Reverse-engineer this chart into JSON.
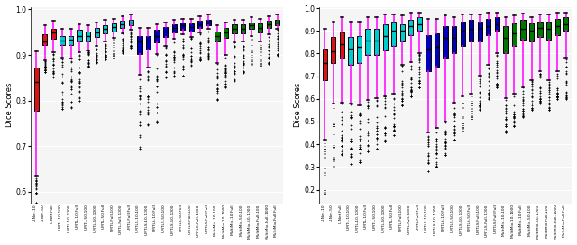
{
  "labels": [
    "U-Net-10",
    "U-Net-50",
    "U-Net-Full",
    "UMTL-10-100",
    "UMTL-10-1000",
    "UMTL-10-Full",
    "UMTL-50-100",
    "UMTL-50-1000",
    "UMTL-50-Full",
    "UMTL-Full-100",
    "UMTL-Full-1000",
    "UMTL-Full-Full",
    "UMTLS-10-100",
    "UMTLS-10-1000",
    "UMTLS-10-Full",
    "UMTLS-50-100",
    "UMTLS-50-1000",
    "UMTLS-50-Full",
    "UMTLS-Full-100",
    "UMTLS-Full-1000",
    "UMTLS-Full-Full",
    "MultiMix-10-100",
    "MultiMix-10-1000",
    "MultiMix-10-Full",
    "MultiMix-50-100",
    "MultiMix-50-1000",
    "MultiMix-Full-100",
    "MultiMix-Full-1000",
    "MultiMix-Full-Full"
  ],
  "colors_box": [
    "red",
    "red",
    "red",
    "cyan",
    "cyan",
    "cyan",
    "cyan",
    "cyan",
    "cyan",
    "cyan",
    "cyan",
    "cyan",
    "blue",
    "blue",
    "blue",
    "blue",
    "blue",
    "blue",
    "blue",
    "blue",
    "blue",
    "green",
    "green",
    "green",
    "green",
    "green",
    "green",
    "green",
    "green"
  ],
  "left_stats": [
    {
      "med": 0.84,
      "q1": 0.778,
      "q3": 0.872,
      "whislo": 0.635,
      "whishi": 0.908,
      "fliers_lo": [
        0.598,
        0.543,
        0.625,
        0.568
      ],
      "fliers_hi": []
    },
    {
      "med": 0.93,
      "q1": 0.921,
      "q3": 0.945,
      "whislo": 0.888,
      "whishi": 0.965,
      "fliers_lo": [
        0.875,
        0.868,
        0.863
      ],
      "fliers_hi": []
    },
    {
      "med": 0.95,
      "q1": 0.935,
      "q3": 0.958,
      "whislo": 0.906,
      "whishi": 0.975,
      "fliers_lo": [
        0.86,
        0.851
      ],
      "fliers_hi": []
    },
    {
      "med": 0.932,
      "q1": 0.921,
      "q3": 0.942,
      "whislo": 0.895,
      "whishi": 0.958,
      "fliers_lo": [
        0.84,
        0.796,
        0.78
      ],
      "fliers_hi": []
    },
    {
      "med": 0.933,
      "q1": 0.921,
      "q3": 0.942,
      "whislo": 0.893,
      "whishi": 0.958,
      "fliers_lo": [
        0.843,
        0.798,
        0.785
      ],
      "fliers_hi": []
    },
    {
      "med": 0.942,
      "q1": 0.93,
      "q3": 0.955,
      "whislo": 0.905,
      "whishi": 0.968,
      "fliers_lo": [
        0.862,
        0.841,
        0.8
      ],
      "fliers_hi": []
    },
    {
      "med": 0.942,
      "q1": 0.93,
      "q3": 0.952,
      "whislo": 0.91,
      "whishi": 0.965,
      "fliers_lo": [
        0.882,
        0.875
      ],
      "fliers_hi": []
    },
    {
      "med": 0.95,
      "q1": 0.94,
      "q3": 0.96,
      "whislo": 0.92,
      "whishi": 0.972,
      "fliers_lo": [
        0.891,
        0.883
      ],
      "fliers_hi": []
    },
    {
      "med": 0.958,
      "q1": 0.948,
      "q3": 0.966,
      "whislo": 0.93,
      "whishi": 0.978,
      "fliers_lo": [
        0.898,
        0.89
      ],
      "fliers_hi": []
    },
    {
      "med": 0.962,
      "q1": 0.952,
      "q3": 0.97,
      "whislo": 0.938,
      "whishi": 0.98,
      "fliers_lo": [
        0.9,
        0.893
      ],
      "fliers_hi": []
    },
    {
      "med": 0.968,
      "q1": 0.96,
      "q3": 0.975,
      "whislo": 0.948,
      "whishi": 0.984,
      "fliers_lo": [
        0.91,
        0.905
      ],
      "fliers_hi": []
    },
    {
      "med": 0.972,
      "q1": 0.965,
      "q3": 0.978,
      "whislo": 0.955,
      "whishi": 0.988,
      "fliers_lo": [
        0.92,
        0.915
      ],
      "fliers_hi": []
    },
    {
      "med": 0.93,
      "q1": 0.903,
      "q3": 0.942,
      "whislo": 0.856,
      "whishi": 0.96,
      "fliers_lo": [
        0.694,
        0.753,
        0.81
      ],
      "fliers_hi": []
    },
    {
      "med": 0.932,
      "q1": 0.912,
      "q3": 0.942,
      "whislo": 0.873,
      "whishi": 0.96,
      "fliers_lo": [
        0.748,
        0.81
      ],
      "fliers_hi": []
    },
    {
      "med": 0.942,
      "q1": 0.928,
      "q3": 0.955,
      "whislo": 0.902,
      "whishi": 0.968,
      "fliers_lo": [
        0.753,
        0.845
      ],
      "fliers_hi": []
    },
    {
      "med": 0.952,
      "q1": 0.94,
      "q3": 0.962,
      "whislo": 0.92,
      "whishi": 0.972,
      "fliers_lo": [
        0.852,
        0.885
      ],
      "fliers_hi": []
    },
    {
      "med": 0.96,
      "q1": 0.95,
      "q3": 0.968,
      "whislo": 0.935,
      "whishi": 0.978,
      "fliers_lo": [
        0.855,
        0.895
      ],
      "fliers_hi": []
    },
    {
      "med": 0.965,
      "q1": 0.955,
      "q3": 0.972,
      "whislo": 0.945,
      "whishi": 0.98,
      "fliers_lo": [
        0.855,
        0.899
      ],
      "fliers_hi": []
    },
    {
      "med": 0.962,
      "q1": 0.952,
      "q3": 0.97,
      "whislo": 0.94,
      "whishi": 0.98,
      "fliers_lo": [
        0.878,
        0.892
      ],
      "fliers_hi": []
    },
    {
      "med": 0.968,
      "q1": 0.96,
      "q3": 0.975,
      "whislo": 0.95,
      "whishi": 0.984,
      "fliers_lo": [
        0.888,
        0.895
      ],
      "fliers_hi": []
    },
    {
      "med": 0.972,
      "q1": 0.965,
      "q3": 0.978,
      "whislo": 0.958,
      "whishi": 0.988,
      "fliers_lo": [
        0.892,
        0.896
      ],
      "fliers_hi": []
    },
    {
      "med": 0.942,
      "q1": 0.93,
      "q3": 0.952,
      "whislo": 0.882,
      "whishi": 0.965,
      "fliers_lo": [
        0.803,
        0.853
      ],
      "fliers_hi": []
    },
    {
      "med": 0.95,
      "q1": 0.938,
      "q3": 0.96,
      "whislo": 0.9,
      "whishi": 0.972,
      "fliers_lo": [
        0.83,
        0.862
      ],
      "fliers_hi": []
    },
    {
      "med": 0.958,
      "q1": 0.948,
      "q3": 0.968,
      "whislo": 0.928,
      "whishi": 0.978,
      "fliers_lo": [
        0.843,
        0.876
      ],
      "fliers_hi": []
    },
    {
      "med": 0.958,
      "q1": 0.948,
      "q3": 0.968,
      "whislo": 0.93,
      "whishi": 0.978,
      "fliers_lo": [
        0.862,
        0.88
      ],
      "fliers_hi": []
    },
    {
      "med": 0.965,
      "q1": 0.958,
      "q3": 0.972,
      "whislo": 0.942,
      "whishi": 0.982,
      "fliers_lo": [
        0.88,
        0.89
      ],
      "fliers_hi": []
    },
    {
      "med": 0.96,
      "q1": 0.95,
      "q3": 0.97,
      "whislo": 0.93,
      "whishi": 0.98,
      "fliers_lo": [
        0.877,
        0.88
      ],
      "fliers_hi": []
    },
    {
      "med": 0.968,
      "q1": 0.96,
      "q3": 0.975,
      "whislo": 0.945,
      "whishi": 0.984,
      "fliers_lo": [
        0.88,
        0.893
      ],
      "fliers_hi": []
    },
    {
      "med": 0.972,
      "q1": 0.965,
      "q3": 0.978,
      "whislo": 0.958,
      "whishi": 0.988,
      "fliers_lo": [
        0.9,
        0.901
      ],
      "fliers_hi": []
    }
  ],
  "right_stats": [
    {
      "med": 0.76,
      "q1": 0.682,
      "q3": 0.82,
      "whislo": 0.42,
      "whishi": 0.908,
      "fliers_lo": [
        0.183,
        0.295,
        0.37,
        0.38
      ],
      "fliers_hi": []
    },
    {
      "med": 0.81,
      "q1": 0.76,
      "q3": 0.872,
      "whislo": 0.58,
      "whishi": 0.94,
      "fliers_lo": [
        0.298,
        0.335,
        0.39,
        0.487
      ],
      "fliers_hi": []
    },
    {
      "med": 0.84,
      "q1": 0.782,
      "q3": 0.892,
      "whislo": 0.583,
      "whishi": 0.96,
      "fliers_lo": [
        0.355,
        0.392,
        0.42
      ],
      "fliers_hi": []
    },
    {
      "med": 0.82,
      "q1": 0.752,
      "q3": 0.872,
      "whislo": 0.578,
      "whishi": 0.94,
      "fliers_lo": [
        0.313,
        0.383,
        0.412,
        0.52
      ],
      "fliers_hi": []
    },
    {
      "med": 0.828,
      "q1": 0.758,
      "q3": 0.878,
      "whislo": 0.572,
      "whishi": 0.942,
      "fliers_lo": [
        0.32,
        0.382,
        0.418,
        0.527
      ],
      "fliers_hi": []
    },
    {
      "med": 0.858,
      "q1": 0.792,
      "q3": 0.908,
      "whislo": 0.595,
      "whishi": 0.96,
      "fliers_lo": [
        0.37,
        0.418,
        0.456
      ],
      "fliers_hi": []
    },
    {
      "med": 0.858,
      "q1": 0.792,
      "q3": 0.91,
      "whislo": 0.602,
      "whishi": 0.96,
      "fliers_lo": [
        0.38,
        0.428,
        0.46
      ],
      "fliers_hi": []
    },
    {
      "med": 0.878,
      "q1": 0.812,
      "q3": 0.928,
      "whislo": 0.612,
      "whishi": 0.972,
      "fliers_lo": [
        0.411,
        0.45,
        0.472
      ],
      "fliers_hi": []
    },
    {
      "med": 0.9,
      "q1": 0.832,
      "q3": 0.94,
      "whislo": 0.622,
      "whishi": 0.972,
      "fliers_lo": [
        0.441,
        0.462,
        0.481
      ],
      "fliers_hi": []
    },
    {
      "med": 0.9,
      "q1": 0.852,
      "q3": 0.93,
      "whislo": 0.752,
      "whishi": 0.968,
      "fliers_lo": [
        0.572,
        0.592,
        0.599
      ],
      "fliers_hi": []
    },
    {
      "med": 0.92,
      "q1": 0.882,
      "q3": 0.95,
      "whislo": 0.762,
      "whishi": 0.98,
      "fliers_lo": [
        0.612,
        0.635,
        0.64
      ],
      "fliers_hi": []
    },
    {
      "med": 0.93,
      "q1": 0.9,
      "q3": 0.96,
      "whislo": 0.802,
      "whishi": 0.982,
      "fliers_lo": [
        0.652,
        0.67,
        0.68
      ],
      "fliers_hi": []
    },
    {
      "med": 0.82,
      "q1": 0.722,
      "q3": 0.882,
      "whislo": 0.452,
      "whishi": 0.952,
      "fliers_lo": [
        0.282,
        0.35,
        0.409
      ],
      "fliers_hi": []
    },
    {
      "med": 0.828,
      "q1": 0.742,
      "q3": 0.89,
      "whislo": 0.472,
      "whishi": 0.952,
      "fliers_lo": [
        0.3,
        0.362,
        0.418
      ],
      "fliers_hi": []
    },
    {
      "med": 0.868,
      "q1": 0.782,
      "q3": 0.92,
      "whislo": 0.5,
      "whishi": 0.968,
      "fliers_lo": [
        0.353,
        0.408,
        0.451
      ],
      "fliers_hi": []
    },
    {
      "med": 0.868,
      "q1": 0.802,
      "q3": 0.922,
      "whislo": 0.582,
      "whishi": 0.96,
      "fliers_lo": [
        0.421,
        0.45,
        0.479
      ],
      "fliers_hi": []
    },
    {
      "med": 0.9,
      "q1": 0.832,
      "q3": 0.942,
      "whislo": 0.612,
      "whishi": 0.972,
      "fliers_lo": [
        0.462,
        0.472,
        0.491
      ],
      "fliers_hi": []
    },
    {
      "med": 0.91,
      "q1": 0.852,
      "q3": 0.95,
      "whislo": 0.622,
      "whishi": 0.972,
      "fliers_lo": [
        0.5,
        0.512,
        0.521
      ],
      "fliers_hi": []
    },
    {
      "med": 0.912,
      "q1": 0.852,
      "q3": 0.942,
      "whislo": 0.702,
      "whishi": 0.972,
      "fliers_lo": [
        0.552,
        0.57,
        0.581
      ],
      "fliers_hi": []
    },
    {
      "med": 0.922,
      "q1": 0.882,
      "q3": 0.952,
      "whislo": 0.752,
      "whishi": 0.98,
      "fliers_lo": [
        0.601,
        0.62,
        0.628
      ],
      "fliers_hi": []
    },
    {
      "med": 0.93,
      "q1": 0.9,
      "q3": 0.96,
      "whislo": 0.8,
      "whishi": 0.982,
      "fliers_lo": [
        0.652,
        0.662,
        0.668
      ],
      "fliers_hi": []
    },
    {
      "med": 0.87,
      "q1": 0.802,
      "q3": 0.92,
      "whislo": 0.602,
      "whishi": 0.96,
      "fliers_lo": [
        0.452,
        0.48,
        0.51
      ],
      "fliers_hi": []
    },
    {
      "med": 0.89,
      "q1": 0.832,
      "q3": 0.932,
      "whislo": 0.622,
      "whishi": 0.968,
      "fliers_lo": [
        0.479,
        0.498,
        0.52
      ],
      "fliers_hi": []
    },
    {
      "med": 0.91,
      "q1": 0.862,
      "q3": 0.948,
      "whislo": 0.652,
      "whishi": 0.978,
      "fliers_lo": [
        0.521,
        0.538,
        0.549
      ],
      "fliers_hi": []
    },
    {
      "med": 0.9,
      "q1": 0.852,
      "q3": 0.932,
      "whislo": 0.682,
      "whishi": 0.962,
      "fliers_lo": [
        0.552,
        0.56,
        0.578
      ],
      "fliers_hi": []
    },
    {
      "med": 0.912,
      "q1": 0.872,
      "q3": 0.942,
      "whislo": 0.722,
      "whishi": 0.972,
      "fliers_lo": [
        0.581,
        0.59,
        0.601
      ],
      "fliers_hi": []
    },
    {
      "med": 0.91,
      "q1": 0.862,
      "q3": 0.942,
      "whislo": 0.682,
      "whishi": 0.972,
      "fliers_lo": [
        0.55,
        0.562,
        0.578
      ],
      "fliers_hi": []
    },
    {
      "med": 0.922,
      "q1": 0.882,
      "q3": 0.952,
      "whislo": 0.722,
      "whishi": 0.982,
      "fliers_lo": [
        0.6,
        0.612,
        0.625
      ],
      "fliers_hi": []
    },
    {
      "med": 0.93,
      "q1": 0.9,
      "q3": 0.96,
      "whislo": 0.782,
      "whishi": 0.982,
      "fliers_lo": [
        0.602,
        0.608,
        0.615
      ],
      "fliers_hi": []
    }
  ],
  "left_ylim": [
    0.575,
    1.005
  ],
  "right_ylim": [
    0.14,
    1.005
  ],
  "left_yticks": [
    0.6,
    0.7,
    0.8,
    0.9,
    1.0
  ],
  "right_yticks": [
    0.2,
    0.3,
    0.4,
    0.5,
    0.6,
    0.7,
    0.8,
    0.9,
    1.0
  ],
  "ylabel": "Dice Scores",
  "bg_color": "#f5f5f5",
  "grid_color": "white",
  "whisker_color": "#ff00ff",
  "flier_color": "orange",
  "cap_color": "black",
  "median_color": "black",
  "box_edge_color": "black"
}
